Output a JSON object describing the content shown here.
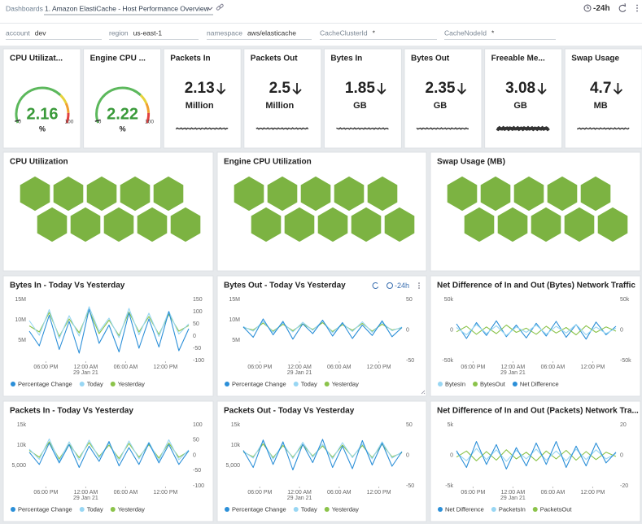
{
  "header": {
    "breadcrumb": "Dashboards",
    "title": "1. Amazon ElastiCache - Host Performance Overview",
    "time_range": "-24h"
  },
  "filters": [
    {
      "label": "account",
      "value": "dev"
    },
    {
      "label": "region",
      "value": "us-east-1"
    },
    {
      "label": "namespace",
      "value": "aws/elasticache"
    },
    {
      "label": "CacheClusterId",
      "value": "*"
    },
    {
      "label": "CacheNodeId",
      "value": "*"
    }
  ],
  "stats": [
    {
      "type": "gauge",
      "title": "CPU Utilizat...",
      "value": 2.16,
      "unit": "%",
      "min": 0,
      "max": 100,
      "color": "#3a9a3a"
    },
    {
      "type": "gauge",
      "title": "Engine CPU ...",
      "value": 2.22,
      "unit": "%",
      "min": 0,
      "max": 100,
      "color": "#3a9a3a"
    },
    {
      "type": "number",
      "title": "Packets In",
      "value": 2.13,
      "unit": "Million"
    },
    {
      "type": "number",
      "title": "Packets Out",
      "value": 2.5,
      "unit": "Million"
    },
    {
      "type": "number",
      "title": "Bytes In",
      "value": 1.85,
      "unit": "GB"
    },
    {
      "type": "number",
      "title": "Bytes Out",
      "value": 2.35,
      "unit": "GB"
    },
    {
      "type": "number",
      "title": "Freeable Me...",
      "value": 3.08,
      "unit": "GB"
    },
    {
      "type": "number",
      "title": "Swap Usage",
      "value": 4.7,
      "unit": "MB"
    }
  ],
  "honeycombs": [
    {
      "title": "CPU Utilization",
      "color": "#7cb342"
    },
    {
      "title": "Engine CPU Utilization",
      "color": "#7cb342"
    },
    {
      "title": "Swap Usage (MB)",
      "color": "#7cb342"
    }
  ],
  "charts": [
    {
      "type": "line",
      "title": "Bytes In - Today Vs Yesterday",
      "x": [
        0,
        1.5,
        3,
        4.5,
        6,
        7.5,
        9,
        10.5,
        12,
        13.5,
        15,
        16.5,
        18,
        19.5,
        21,
        22.5,
        24
      ],
      "xlim": [
        0,
        24
      ],
      "xticks": [
        {
          "value": 2.5,
          "label": "06:00 PM"
        },
        {
          "value": 8.5,
          "label": "12:00 AM",
          "date": "29 Jan 21"
        },
        {
          "value": 14.5,
          "label": "06:00 AM"
        },
        {
          "value": 20.5,
          "label": "12:00 PM"
        }
      ],
      "ylim": [
        0,
        15000000
      ],
      "yticks": [
        {
          "value": 5000000,
          "label": "5M"
        },
        {
          "value": 10000000,
          "label": "10M"
        },
        {
          "value": 15000000,
          "label": "15M"
        }
      ],
      "y2lim": [
        -100,
        150
      ],
      "y2ticks": [
        -100,
        -50,
        0,
        50,
        100,
        150
      ],
      "series": [
        {
          "name": "Percentage Change",
          "color": "#2b8fd8",
          "axis": "y2",
          "values": [
            20,
            -40,
            85,
            -55,
            60,
            -70,
            110,
            -30,
            45,
            -65,
            95,
            -50,
            70,
            -45,
            100,
            -60,
            30
          ]
        },
        {
          "name": "Today",
          "color": "#98d6f3",
          "values": [
            9800000,
            6200000,
            12500000,
            5400000,
            11000000,
            6000000,
            13200000,
            7100000,
            10400000,
            5600000,
            12800000,
            6300000,
            11600000,
            5900000,
            12100000,
            6500000,
            9000000
          ]
        },
        {
          "name": "Yesterday",
          "color": "#8bc34a",
          "values": [
            8500000,
            7000000,
            11800000,
            5900000,
            10200000,
            6800000,
            12400000,
            6600000,
            9900000,
            6100000,
            11900000,
            7000000,
            10800000,
            6400000,
            11300000,
            7200000,
            8600000
          ]
        }
      ]
    },
    {
      "type": "line",
      "title": "Bytes Out - Today Vs Yesterday",
      "time_range": "-24h",
      "x": [
        0,
        1.5,
        3,
        4.5,
        6,
        7.5,
        9,
        10.5,
        12,
        13.5,
        15,
        16.5,
        18,
        19.5,
        21,
        22.5,
        24
      ],
      "xlim": [
        0,
        24
      ],
      "xticks": [
        {
          "value": 2.5,
          "label": "06:00 PM"
        },
        {
          "value": 8.5,
          "label": "12:00 AM",
          "date": "29 Jan 21"
        },
        {
          "value": 14.5,
          "label": "06:00 AM"
        },
        {
          "value": 20.5,
          "label": "12:00 PM"
        }
      ],
      "ylim": [
        0,
        15000000
      ],
      "yticks": [
        {
          "value": 5000000,
          "label": "5M"
        },
        {
          "value": 10000000,
          "label": "10M"
        },
        {
          "value": 15000000,
          "label": "15M"
        }
      ],
      "y2lim": [
        -50,
        50
      ],
      "y2ticks": [
        -50,
        0,
        50
      ],
      "series": [
        {
          "name": "Percentage Change",
          "color": "#2b8fd8",
          "axis": "y2",
          "values": [
            5,
            -12,
            18,
            -8,
            14,
            -15,
            10,
            -6,
            16,
            -10,
            12,
            -14,
            8,
            -9,
            15,
            -11,
            4
          ]
        },
        {
          "name": "Today",
          "color": "#98d6f3",
          "values": [
            8300000,
            7200000,
            9600000,
            6900000,
            9200000,
            7000000,
            9400000,
            7400000,
            9700000,
            6800000,
            9100000,
            7100000,
            9500000,
            6900000,
            9300000,
            7300000,
            8200000
          ]
        },
        {
          "name": "Yesterday",
          "color": "#8bc34a",
          "values": [
            8100000,
            7500000,
            9200000,
            7200000,
            8900000,
            7300000,
            9000000,
            7600000,
            9300000,
            7100000,
            8800000,
            7400000,
            9100000,
            7200000,
            8900000,
            7500000,
            8000000
          ]
        }
      ]
    },
    {
      "type": "line",
      "title": "Net Difference of In and Out (Bytes) Network Traffic",
      "x": [
        0,
        1.5,
        3,
        4.5,
        6,
        7.5,
        9,
        10.5,
        12,
        13.5,
        15,
        16.5,
        18,
        19.5,
        21,
        22.5,
        24
      ],
      "xlim": [
        0,
        24
      ],
      "xticks": [
        {
          "value": 2.5,
          "label": "06:00 PM"
        },
        {
          "value": 8.5,
          "label": "12:00 AM",
          "date": "29 Jan 21"
        },
        {
          "value": 14.5,
          "label": "06:00 AM"
        },
        {
          "value": 20.5,
          "label": "12:00 PM"
        }
      ],
      "ylim": [
        -50000,
        50000
      ],
      "yticks": [
        {
          "value": -50000,
          "label": "-50k"
        },
        0,
        {
          "value": 50000,
          "label": "50k"
        }
      ],
      "y2lim": [
        -50000,
        50000
      ],
      "y2ticks": [
        {
          "value": -50000,
          "label": "-50k"
        },
        0,
        {
          "value": 50000,
          "label": "50k"
        }
      ],
      "series": [
        {
          "name": "BytesIn",
          "color": "#98d6f3",
          "values": [
            4000,
            -8000,
            9000,
            -6000,
            7000,
            -9000,
            5000,
            -4000,
            8000,
            -7000,
            6000,
            -5000,
            9000,
            -8000,
            5000,
            -6000,
            3000
          ]
        },
        {
          "name": "BytesOut",
          "color": "#8bc34a",
          "values": [
            -3000,
            6000,
            -7000,
            5000,
            -6000,
            8000,
            -4000,
            3000,
            -7000,
            6000,
            -5000,
            4000,
            -8000,
            7000,
            -4000,
            5000,
            -2000
          ]
        },
        {
          "name": "Net Difference",
          "color": "#2b8fd8",
          "axis": "y2",
          "values": [
            10000,
            -14000,
            12000,
            -9000,
            15000,
            -11000,
            8000,
            -13000,
            11000,
            -10000,
            14000,
            -12000,
            9000,
            -15000,
            13000,
            -8000,
            6000
          ]
        }
      ]
    },
    {
      "type": "line",
      "title": "Packets In - Today Vs Yesterday",
      "x": [
        0,
        1.5,
        3,
        4.5,
        6,
        7.5,
        9,
        10.5,
        12,
        13.5,
        15,
        16.5,
        18,
        19.5,
        21,
        22.5,
        24
      ],
      "xlim": [
        0,
        24
      ],
      "xticks": [
        {
          "value": 2.5,
          "label": "06:00 PM"
        },
        {
          "value": 8.5,
          "label": "12:00 AM",
          "date": "29 Jan 21"
        },
        {
          "value": 14.5,
          "label": "06:00 AM"
        },
        {
          "value": 20.5,
          "label": "12:00 PM"
        }
      ],
      "ylim": [
        0,
        15000
      ],
      "yticks": [
        {
          "value": 5000,
          "label": "5,000"
        },
        {
          "value": 10000,
          "label": "10k"
        },
        {
          "value": 15000,
          "label": "15k"
        }
      ],
      "y2lim": [
        -100,
        100
      ],
      "y2ticks": [
        -100,
        -50,
        0,
        50,
        100
      ],
      "series": [
        {
          "name": "Percentage Change",
          "color": "#2b8fd8",
          "axis": "y2",
          "values": [
            10,
            -30,
            40,
            -25,
            35,
            -40,
            30,
            -20,
            45,
            -35,
            25,
            -30,
            40,
            -25,
            35,
            -30,
            15
          ]
        },
        {
          "name": "Today",
          "color": "#98d6f3",
          "values": [
            9000,
            6500,
            11500,
            6000,
            10800,
            6300,
            11200,
            6800,
            10500,
            6100,
            11000,
            6600,
            10700,
            6200,
            11300,
            6400,
            8800
          ]
        },
        {
          "name": "Yesterday",
          "color": "#8bc34a",
          "values": [
            8700,
            7000,
            10800,
            6600,
            10200,
            6900,
            10600,
            7200,
            10000,
            6700,
            10400,
            7000,
            10100,
            6800,
            10500,
            7000,
            8500
          ]
        }
      ]
    },
    {
      "type": "line",
      "title": "Packets Out - Today Vs Yesterday",
      "x": [
        0,
        1.5,
        3,
        4.5,
        6,
        7.5,
        9,
        10.5,
        12,
        13.5,
        15,
        16.5,
        18,
        19.5,
        21,
        22.5,
        24
      ],
      "xlim": [
        0,
        24
      ],
      "xticks": [
        {
          "value": 2.5,
          "label": "06:00 PM"
        },
        {
          "value": 8.5,
          "label": "12:00 AM",
          "date": "29 Jan 21"
        },
        {
          "value": 14.5,
          "label": "06:00 AM"
        },
        {
          "value": 20.5,
          "label": "12:00 PM"
        }
      ],
      "ylim": [
        0,
        15000
      ],
      "yticks": [
        {
          "value": 5000,
          "label": "5,000"
        },
        {
          "value": 10000,
          "label": "10k"
        },
        {
          "value": 15000,
          "label": "15k"
        }
      ],
      "y2lim": [
        -50,
        50
      ],
      "y2ticks": [
        -50,
        0,
        50
      ],
      "series": [
        {
          "name": "Percentage Change",
          "color": "#2b8fd8",
          "axis": "y2",
          "values": [
            8,
            -20,
            25,
            -15,
            22,
            -24,
            18,
            -12,
            26,
            -20,
            15,
            -22,
            24,
            -16,
            20,
            -18,
            6
          ]
        },
        {
          "name": "Today",
          "color": "#98d6f3",
          "values": [
            8500,
            6800,
            10900,
            6500,
            10400,
            6700,
            10700,
            7000,
            10200,
            6600,
            10600,
            6900,
            10300,
            6600,
            10800,
            6800,
            8300
          ]
        },
        {
          "name": "Yesterday",
          "color": "#8bc34a",
          "values": [
            8300,
            7100,
            10300,
            6900,
            9900,
            7000,
            10100,
            7300,
            9800,
            7000,
            10000,
            7100,
            9900,
            6900,
            10200,
            7100,
            8100
          ]
        }
      ]
    },
    {
      "type": "line",
      "title": "Net Difference of In and Out (Packets) Network Tra...",
      "x": [
        0,
        1.5,
        3,
        4.5,
        6,
        7.5,
        9,
        10.5,
        12,
        13.5,
        15,
        16.5,
        18,
        19.5,
        21,
        22.5,
        24
      ],
      "xlim": [
        0,
        24
      ],
      "xticks": [
        {
          "value": 2.5,
          "label": "06:00 PM"
        },
        {
          "value": 8.5,
          "label": "12:00 AM",
          "date": "29 Jan 21"
        },
        {
          "value": 14.5,
          "label": "06:00 AM"
        },
        {
          "value": 20.5,
          "label": "12:00 PM"
        }
      ],
      "ylim": [
        -5000,
        5000
      ],
      "yticks": [
        {
          "value": -5000,
          "label": "-5k"
        },
        0,
        {
          "value": 5000,
          "label": "5k"
        }
      ],
      "y2lim": [
        -20,
        20
      ],
      "y2ticks": [
        -20,
        0,
        20
      ],
      "series": [
        {
          "name": "Net Difference",
          "color": "#2b8fd8",
          "axis": "y2",
          "values": [
            3,
            -8,
            9,
            -6,
            7,
            -9,
            5,
            -7,
            8,
            -6,
            9,
            -8,
            6,
            -7,
            8,
            -5,
            2
          ]
        },
        {
          "name": "PacketsIn",
          "color": "#98d6f3",
          "values": [
            400,
            -900,
            1100,
            -700,
            900,
            -1000,
            800,
            -600,
            1000,
            -800,
            700,
            -900,
            1000,
            -700,
            900,
            -600,
            300
          ]
        },
        {
          "name": "PacketsOut",
          "color": "#8bc34a",
          "values": [
            -300,
            700,
            -900,
            600,
            -800,
            900,
            -600,
            500,
            -900,
            700,
            -600,
            800,
            -800,
            600,
            -700,
            500,
            -200
          ]
        }
      ]
    }
  ]
}
